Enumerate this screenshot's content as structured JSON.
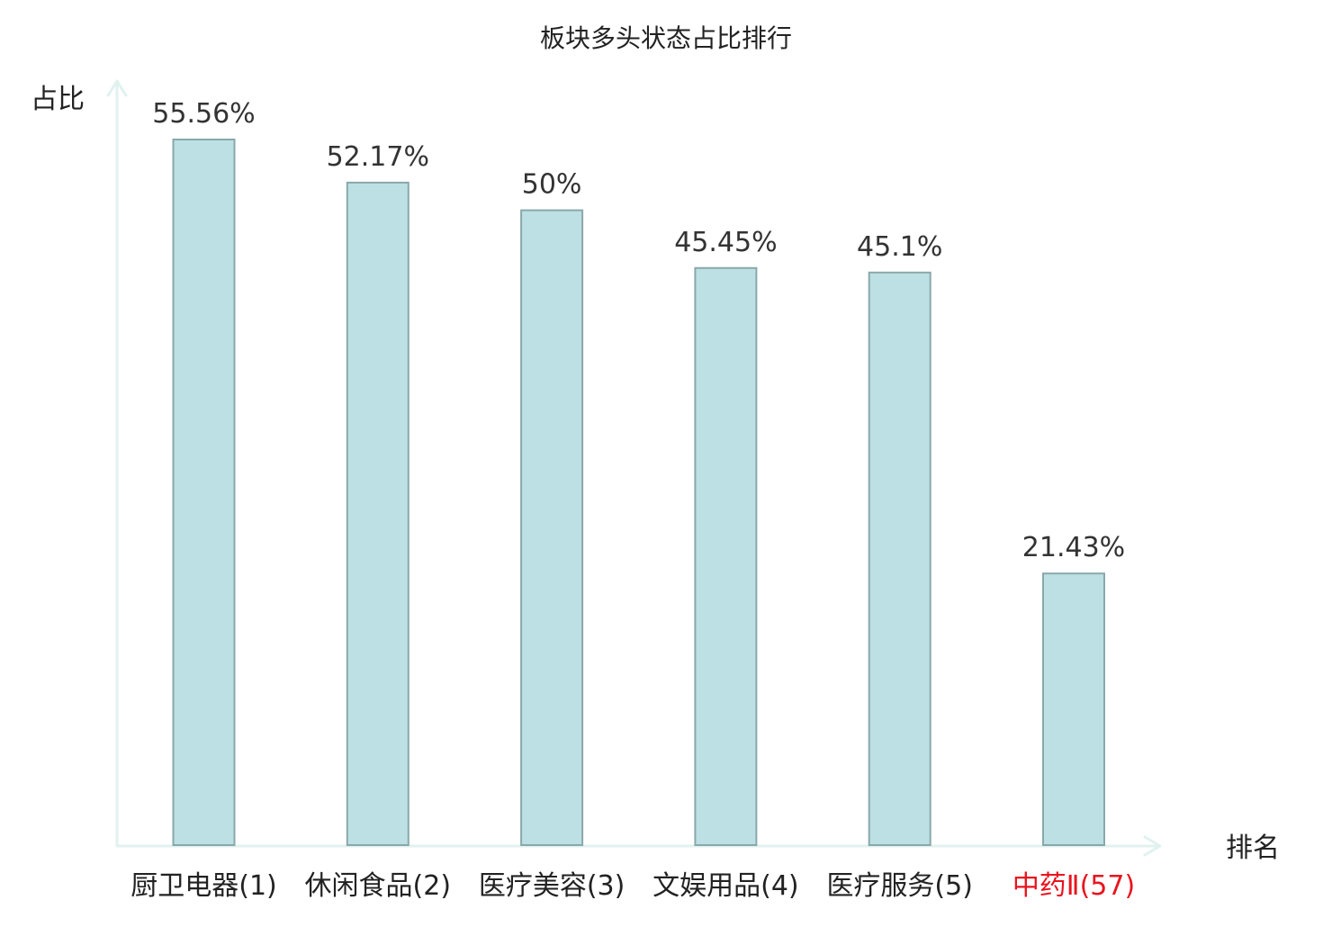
{
  "chart_data": {
    "type": "bar",
    "title": "板块多头状态占比排行",
    "xlabel": "排名",
    "ylabel": "占比",
    "categories": [
      "厨卫电器(1)",
      "休闲食品(2)",
      "医疗美容(3)",
      "文娱用品(4)",
      "医疗服务(5)",
      "中药Ⅱ(57)"
    ],
    "values": [
      55.56,
      52.17,
      50,
      45.45,
      45.1,
      21.43
    ],
    "value_labels": [
      "55.56%",
      "52.17%",
      "50%",
      "45.45%",
      "45.1%",
      "21.43%"
    ],
    "highlight_index": 5,
    "ylim": [
      0,
      60
    ],
    "grid": false,
    "show_y_ticks": false
  },
  "colors": {
    "bar_fill": "#bce0e3",
    "bar_stroke": "#8aa8ab",
    "axis": "#e0f2ef",
    "text": "#222222",
    "value_text": "#333333",
    "highlight": "#e8141e"
  }
}
